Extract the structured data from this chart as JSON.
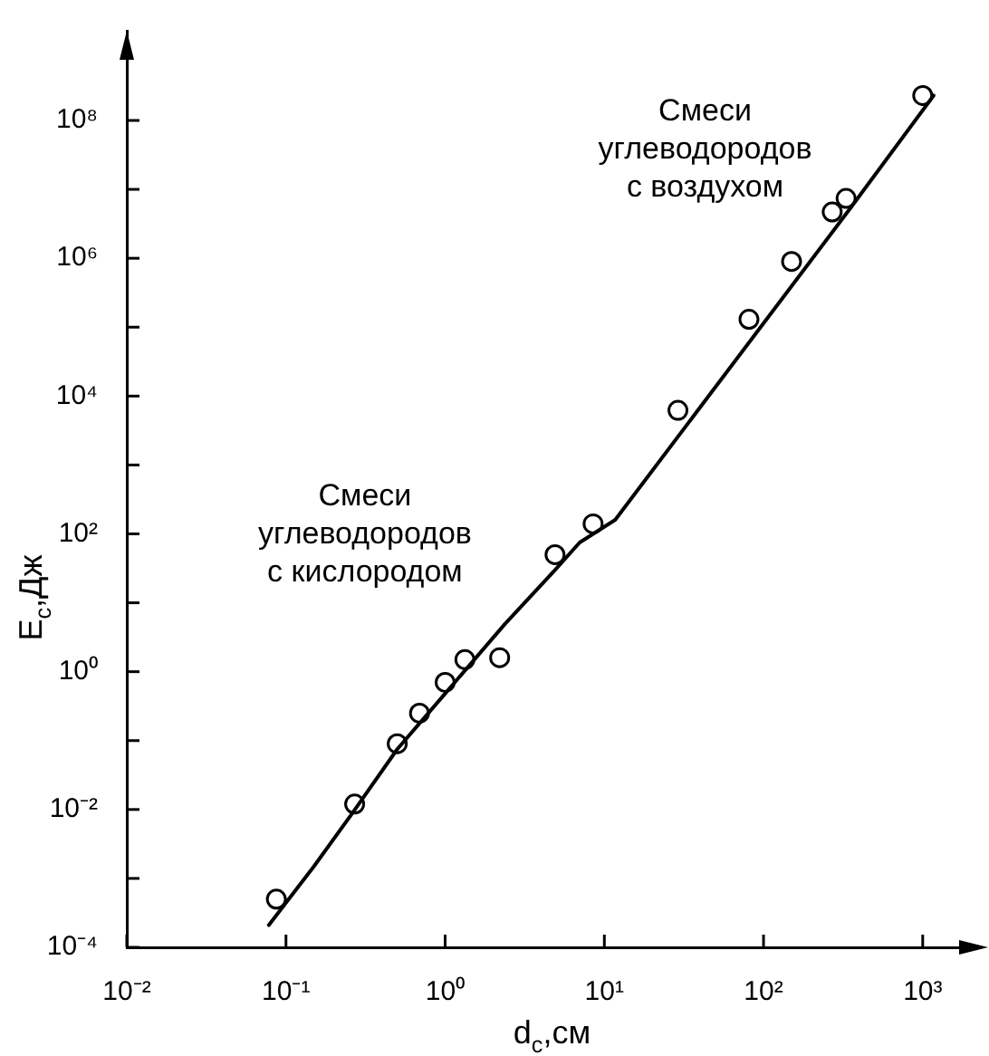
{
  "chart_data": {
    "type": "scatter",
    "xlabel": "d$_{c}$,см",
    "ylabel": "E$_{c}$,Дж",
    "log": "xy",
    "grid": false,
    "legend": false,
    "xlim": [
      0.01,
      2200
    ],
    "ylim": [
      0.0001,
      2000000000
    ],
    "xticks": [
      {
        "value": 0.01,
        "label": "10⁻²"
      },
      {
        "value": 0.1,
        "label": "10⁻¹"
      },
      {
        "value": 1,
        "label": "10⁰"
      },
      {
        "value": 10,
        "label": "10¹"
      },
      {
        "value": 100,
        "label": "10²"
      },
      {
        "value": 1000,
        "label": "10³"
      }
    ],
    "yticks": [
      {
        "value": 0.0001,
        "label": "10⁻⁴"
      },
      {
        "value": 0.001,
        "label": null
      },
      {
        "value": 0.01,
        "label": "10⁻²"
      },
      {
        "value": 0.1,
        "label": null
      },
      {
        "value": 1,
        "label": "10⁰"
      },
      {
        "value": 10,
        "label": null
      },
      {
        "value": 100,
        "label": "10²"
      },
      {
        "value": 1000,
        "label": null
      },
      {
        "value": 10000,
        "label": "10⁴"
      },
      {
        "value": 100000,
        "label": null
      },
      {
        "value": 1000000,
        "label": "10⁶"
      },
      {
        "value": 10000000,
        "label": null
      },
      {
        "value": 100000000,
        "label": "10⁸"
      }
    ],
    "series": [
      {
        "color": "#000000",
        "marker": "circle",
        "x": [
          0.087,
          0.27,
          0.5,
          0.69,
          1.0,
          1.33,
          2.2,
          4.9,
          8.5,
          29,
          81,
          150,
          270,
          330,
          1000
        ],
        "values": [
          0.0005,
          0.012,
          0.09,
          0.25,
          0.7,
          1.5,
          1.6,
          50,
          140,
          6200,
          130000,
          900000,
          4700000,
          7400000,
          230000000
        ]
      },
      {
        "type": "line",
        "color": "#000000",
        "marker": "none",
        "line_style": "solid",
        "x": [
          0.078,
          0.15,
          0.26,
          0.5,
          0.95,
          2.37,
          4.9,
          7,
          11.7,
          355,
          1170
        ],
        "values": [
          0.00021,
          0.0015,
          0.0087,
          0.075,
          0.42,
          4.9,
          30,
          75,
          160,
          5500000,
          230000000
        ]
      }
    ],
    "annotations": [
      "Смеси\nуглеводородов\nс воздухом",
      "Смеси\nуглеводородов\nс кислородом"
    ]
  }
}
